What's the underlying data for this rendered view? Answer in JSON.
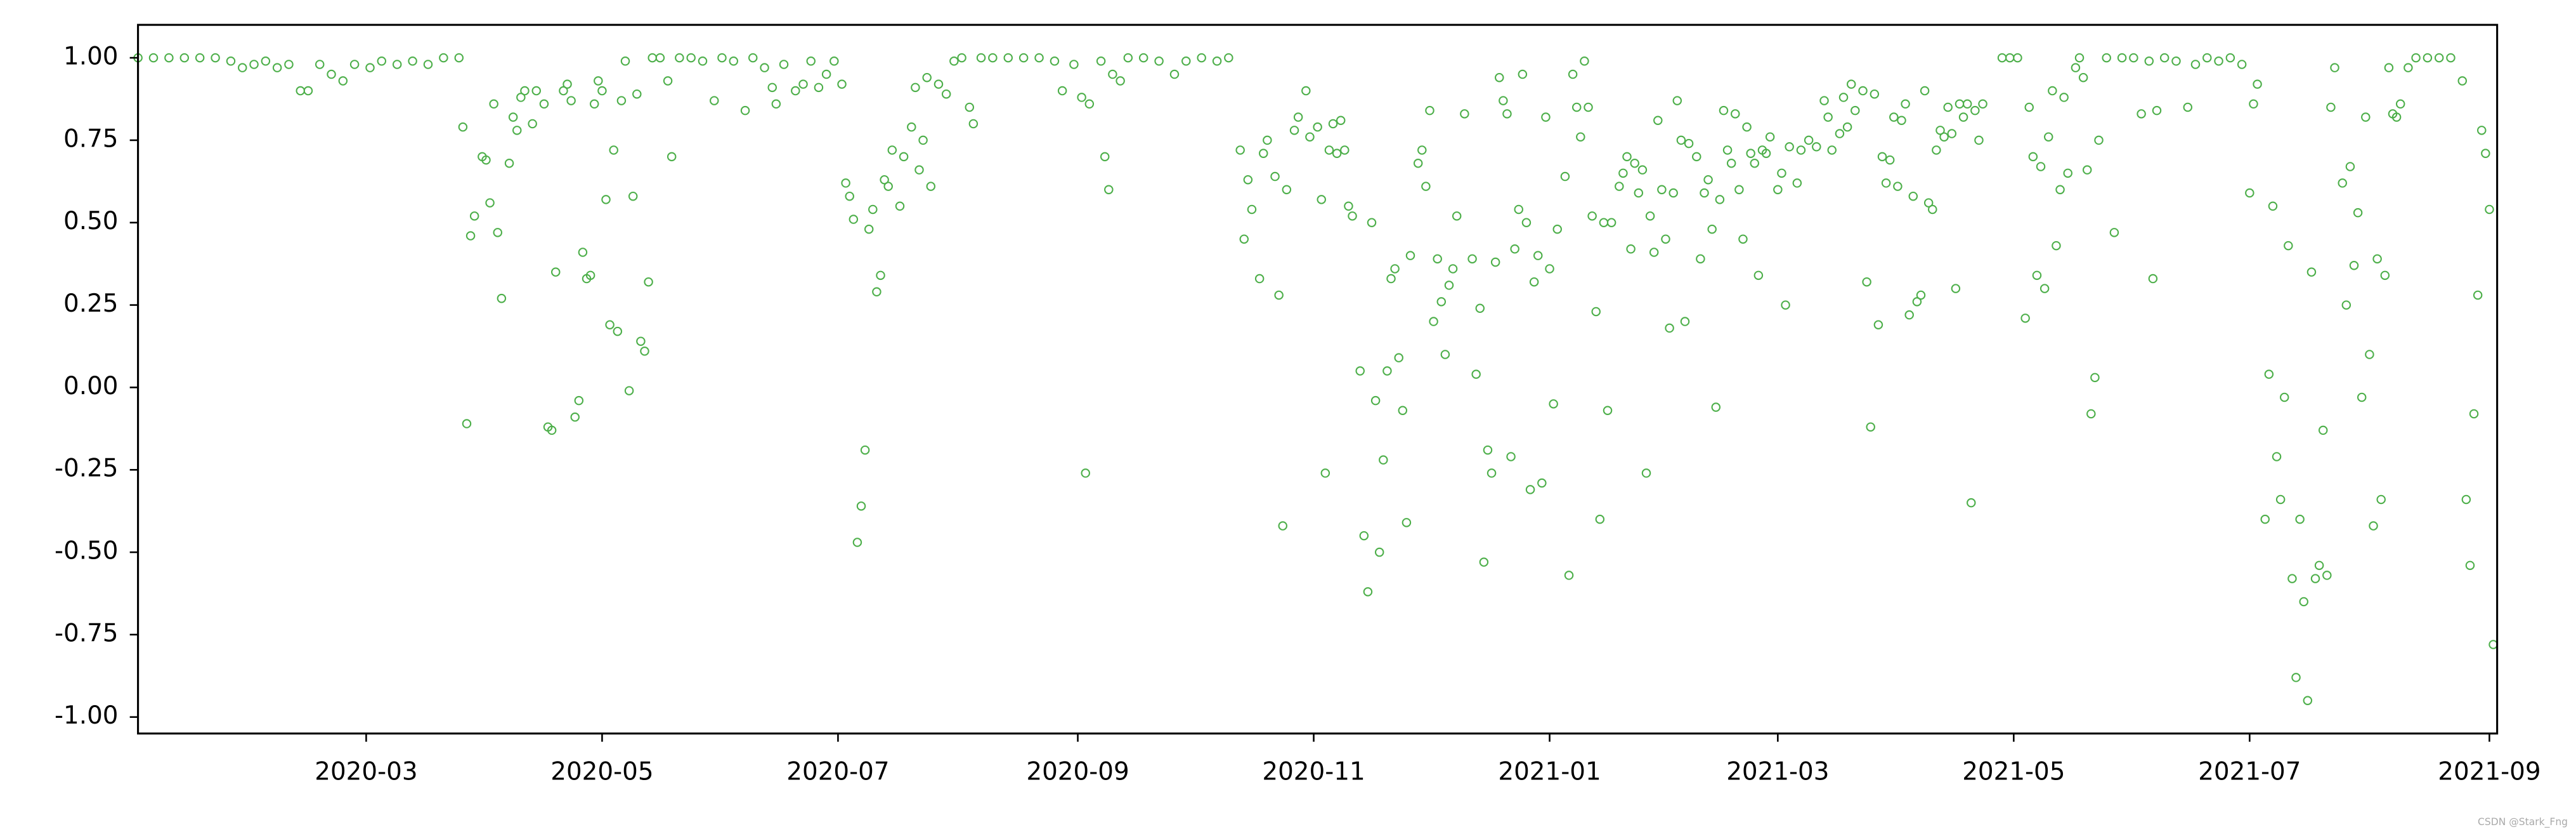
{
  "chart_data": {
    "type": "scatter",
    "color": "#4daf4a",
    "watermark": "CSDN @Stark_Fng",
    "xlim": [
      "2020-01-02",
      "2021-09-03"
    ],
    "xticks": [
      {
        "value": "2020-03-01",
        "label": "2020-03"
      },
      {
        "value": "2020-05-01",
        "label": "2020-05"
      },
      {
        "value": "2020-07-01",
        "label": "2020-07"
      },
      {
        "value": "2020-09-01",
        "label": "2020-09"
      },
      {
        "value": "2020-11-01",
        "label": "2020-11"
      },
      {
        "value": "2021-01-01",
        "label": "2021-01"
      },
      {
        "value": "2021-03-01",
        "label": "2021-03"
      },
      {
        "value": "2021-05-01",
        "label": "2021-05"
      },
      {
        "value": "2021-07-01",
        "label": "2021-07"
      },
      {
        "value": "2021-09-01",
        "label": "2021-09"
      }
    ],
    "ylim": [
      -1.05,
      1.1
    ],
    "yticks": [
      {
        "value": 1,
        "label": "1.00"
      },
      {
        "value": 0.75,
        "label": "0.75"
      },
      {
        "value": 0.5,
        "label": "0.50"
      },
      {
        "value": 0.25,
        "label": "0.25"
      },
      {
        "value": 0,
        "label": "0.00"
      },
      {
        "value": -0.25,
        "label": "-0.25"
      },
      {
        "value": -0.5,
        "label": "-0.50"
      },
      {
        "value": -0.75,
        "label": "-0.75"
      },
      {
        "value": -1,
        "label": "-1.00"
      }
    ],
    "x": [
      "2020-01-02",
      "2020-01-06",
      "2020-01-10",
      "2020-01-14",
      "2020-01-18",
      "2020-01-22",
      "2020-01-26",
      "2020-01-29",
      "2020-02-01",
      "2020-02-04",
      "2020-02-07",
      "2020-02-10",
      "2020-02-13",
      "2020-02-15",
      "2020-02-18",
      "2020-02-21",
      "2020-02-24",
      "2020-02-27",
      "2020-03-02",
      "2020-03-05",
      "2020-03-09",
      "2020-03-13",
      "2020-03-17",
      "2020-03-21",
      "2020-03-25",
      "2020-03-26",
      "2020-03-27",
      "2020-03-28",
      "2020-03-29",
      "2020-03-31",
      "2020-04-01",
      "2020-04-02",
      "2020-04-03",
      "2020-04-04",
      "2020-04-05",
      "2020-04-07",
      "2020-04-08",
      "2020-04-09",
      "2020-04-10",
      "2020-04-11",
      "2020-04-13",
      "2020-04-14",
      "2020-04-16",
      "2020-04-17",
      "2020-04-18",
      "2020-04-19",
      "2020-04-21",
      "2020-04-22",
      "2020-04-23",
      "2020-04-24",
      "2020-04-25",
      "2020-04-26",
      "2020-04-27",
      "2020-04-28",
      "2020-04-29",
      "2020-04-30",
      "2020-05-01",
      "2020-05-02",
      "2020-05-03",
      "2020-05-04",
      "2020-05-05",
      "2020-05-06",
      "2020-05-07",
      "2020-05-08",
      "2020-05-09",
      "2020-05-10",
      "2020-05-11",
      "2020-05-12",
      "2020-05-13",
      "2020-05-14",
      "2020-05-16",
      "2020-05-18",
      "2020-05-19",
      "2020-05-21",
      "2020-05-24",
      "2020-05-27",
      "2020-05-30",
      "2020-06-01",
      "2020-06-04",
      "2020-06-07",
      "2020-06-09",
      "2020-06-12",
      "2020-06-14",
      "2020-06-15",
      "2020-06-17",
      "2020-06-20",
      "2020-06-22",
      "2020-06-24",
      "2020-06-26",
      "2020-06-28",
      "2020-06-30",
      "2020-07-02",
      "2020-07-03",
      "2020-07-04",
      "2020-07-05",
      "2020-07-06",
      "2020-07-07",
      "2020-07-08",
      "2020-07-09",
      "2020-07-10",
      "2020-07-11",
      "2020-07-12",
      "2020-07-13",
      "2020-07-14",
      "2020-07-15",
      "2020-07-17",
      "2020-07-18",
      "2020-07-20",
      "2020-07-21",
      "2020-07-22",
      "2020-07-23",
      "2020-07-24",
      "2020-07-25",
      "2020-07-27",
      "2020-07-29",
      "2020-07-31",
      "2020-08-02",
      "2020-08-04",
      "2020-08-05",
      "2020-08-07",
      "2020-08-10",
      "2020-08-14",
      "2020-08-18",
      "2020-08-22",
      "2020-08-26",
      "2020-08-28",
      "2020-08-31",
      "2020-09-02",
      "2020-09-03",
      "2020-09-04",
      "2020-09-07",
      "2020-09-08",
      "2020-09-09",
      "2020-09-10",
      "2020-09-12",
      "2020-09-14",
      "2020-09-18",
      "2020-09-22",
      "2020-09-26",
      "2020-09-29",
      "2020-10-03",
      "2020-10-07",
      "2020-10-10",
      "2020-10-13",
      "2020-10-14",
      "2020-10-15",
      "2020-10-16",
      "2020-10-18",
      "2020-10-19",
      "2020-10-20",
      "2020-10-22",
      "2020-10-23",
      "2020-10-24",
      "2020-10-25",
      "2020-10-27",
      "2020-10-28",
      "2020-10-30",
      "2020-10-31",
      "2020-11-02",
      "2020-11-03",
      "2020-11-04",
      "2020-11-05",
      "2020-11-06",
      "2020-11-07",
      "2020-11-08",
      "2020-11-09",
      "2020-11-10",
      "2020-11-11",
      "2020-11-13",
      "2020-11-14",
      "2020-11-15",
      "2020-11-16",
      "2020-11-17",
      "2020-11-18",
      "2020-11-19",
      "2020-11-20",
      "2020-11-21",
      "2020-11-22",
      "2020-11-23",
      "2020-11-24",
      "2020-11-25",
      "2020-11-26",
      "2020-11-28",
      "2020-11-29",
      "2020-11-30",
      "2020-12-01",
      "2020-12-02",
      "2020-12-03",
      "2020-12-04",
      "2020-12-05",
      "2020-12-06",
      "2020-12-07",
      "2020-12-08",
      "2020-12-10",
      "2020-12-12",
      "2020-12-13",
      "2020-12-14",
      "2020-12-15",
      "2020-12-16",
      "2020-12-17",
      "2020-12-18",
      "2020-12-19",
      "2020-12-20",
      "2020-12-21",
      "2020-12-22",
      "2020-12-23",
      "2020-12-24",
      "2020-12-25",
      "2020-12-26",
      "2020-12-27",
      "2020-12-28",
      "2020-12-29",
      "2020-12-30",
      "2020-12-31",
      "2021-01-01",
      "2021-01-02",
      "2021-01-03",
      "2021-01-05",
      "2021-01-06",
      "2021-01-07",
      "2021-01-08",
      "2021-01-09",
      "2021-01-10",
      "2021-01-11",
      "2021-01-12",
      "2021-01-13",
      "2021-01-14",
      "2021-01-15",
      "2021-01-16",
      "2021-01-17",
      "2021-01-19",
      "2021-01-20",
      "2021-01-21",
      "2021-01-22",
      "2021-01-23",
      "2021-01-24",
      "2021-01-25",
      "2021-01-26",
      "2021-01-27",
      "2021-01-28",
      "2021-01-29",
      "2021-01-30",
      "2021-01-31",
      "2021-02-01",
      "2021-02-02",
      "2021-02-03",
      "2021-02-04",
      "2021-02-05",
      "2021-02-06",
      "2021-02-08",
      "2021-02-09",
      "2021-02-10",
      "2021-02-11",
      "2021-02-12",
      "2021-02-13",
      "2021-02-14",
      "2021-02-15",
      "2021-02-16",
      "2021-02-17",
      "2021-02-18",
      "2021-02-19",
      "2021-02-20",
      "2021-02-21",
      "2021-02-22",
      "2021-02-23",
      "2021-02-24",
      "2021-02-25",
      "2021-02-26",
      "2021-02-27",
      "2021-03-01",
      "2021-03-02",
      "2021-03-03",
      "2021-03-04",
      "2021-03-06",
      "2021-03-07",
      "2021-03-09",
      "2021-03-11",
      "2021-03-13",
      "2021-03-14",
      "2021-03-15",
      "2021-03-17",
      "2021-03-18",
      "2021-03-19",
      "2021-03-20",
      "2021-03-21",
      "2021-03-23",
      "2021-03-24",
      "2021-03-25",
      "2021-03-26",
      "2021-03-27",
      "2021-03-28",
      "2021-03-29",
      "2021-03-30",
      "2021-03-31",
      "2021-04-01",
      "2021-04-02",
      "2021-04-03",
      "2021-04-04",
      "2021-04-05",
      "2021-04-06",
      "2021-04-07",
      "2021-04-08",
      "2021-04-09",
      "2021-04-10",
      "2021-04-11",
      "2021-04-12",
      "2021-04-13",
      "2021-04-14",
      "2021-04-15",
      "2021-04-16",
      "2021-04-17",
      "2021-04-18",
      "2021-04-19",
      "2021-04-20",
      "2021-04-21",
      "2021-04-22",
      "2021-04-23",
      "2021-04-28",
      "2021-04-30",
      "2021-05-02",
      "2021-05-04",
      "2021-05-05",
      "2021-05-06",
      "2021-05-07",
      "2021-05-08",
      "2021-05-09",
      "2021-05-10",
      "2021-05-11",
      "2021-05-12",
      "2021-05-13",
      "2021-05-14",
      "2021-05-15",
      "2021-05-17",
      "2021-05-18",
      "2021-05-19",
      "2021-05-20",
      "2021-05-21",
      "2021-05-22",
      "2021-05-23",
      "2021-05-25",
      "2021-05-27",
      "2021-05-29",
      "2021-06-01",
      "2021-06-03",
      "2021-06-05",
      "2021-06-06",
      "2021-06-07",
      "2021-06-09",
      "2021-06-12",
      "2021-06-15",
      "2021-06-17",
      "2021-06-20",
      "2021-06-23",
      "2021-06-26",
      "2021-06-29",
      "2021-07-01",
      "2021-07-02",
      "2021-07-03",
      "2021-07-05",
      "2021-07-06",
      "2021-07-07",
      "2021-07-08",
      "2021-07-09",
      "2021-07-10",
      "2021-07-11",
      "2021-07-12",
      "2021-07-13",
      "2021-07-14",
      "2021-07-15",
      "2021-07-16",
      "2021-07-17",
      "2021-07-18",
      "2021-07-19",
      "2021-07-20",
      "2021-07-21",
      "2021-07-22",
      "2021-07-23",
      "2021-07-25",
      "2021-07-26",
      "2021-07-27",
      "2021-07-28",
      "2021-07-29",
      "2021-07-30",
      "2021-07-31",
      "2021-08-01",
      "2021-08-02",
      "2021-08-03",
      "2021-08-04",
      "2021-08-05",
      "2021-08-06",
      "2021-08-07",
      "2021-08-08",
      "2021-08-09",
      "2021-08-11",
      "2021-08-13",
      "2021-08-16",
      "2021-08-19",
      "2021-08-22",
      "2021-08-25",
      "2021-08-26",
      "2021-08-27",
      "2021-08-28",
      "2021-08-29",
      "2021-08-30",
      "2021-08-31",
      "2021-09-01",
      "2021-09-02"
    ],
    "values": [
      1.0,
      1.0,
      1.0,
      1.0,
      1.0,
      1.0,
      0.99,
      0.97,
      0.98,
      0.99,
      0.97,
      0.98,
      0.9,
      0.9,
      0.98,
      0.95,
      0.93,
      0.98,
      0.97,
      0.99,
      0.98,
      0.99,
      0.98,
      1.0,
      1.0,
      0.79,
      -0.11,
      0.46,
      0.52,
      0.7,
      0.69,
      0.56,
      0.86,
      0.47,
      0.27,
      0.68,
      0.82,
      0.78,
      0.88,
      0.9,
      0.8,
      0.9,
      0.86,
      -0.12,
      -0.13,
      0.35,
      0.9,
      0.92,
      0.87,
      -0.09,
      -0.04,
      0.41,
      0.33,
      0.34,
      0.86,
      0.93,
      0.9,
      0.57,
      0.19,
      0.72,
      0.17,
      0.87,
      0.99,
      -0.01,
      0.58,
      0.89,
      0.14,
      0.11,
      0.32,
      1.0,
      1.0,
      0.93,
      0.7,
      1.0,
      1.0,
      0.99,
      0.87,
      1.0,
      0.99,
      0.84,
      1.0,
      0.97,
      0.91,
      0.86,
      0.98,
      0.9,
      0.92,
      0.99,
      0.91,
      0.95,
      0.99,
      0.92,
      0.62,
      0.58,
      0.51,
      -0.47,
      -0.36,
      -0.19,
      0.48,
      0.54,
      0.29,
      0.34,
      0.63,
      0.61,
      0.72,
      0.55,
      0.7,
      0.79,
      0.91,
      0.66,
      0.75,
      0.94,
      0.61,
      0.92,
      0.89,
      0.99,
      1.0,
      0.85,
      0.8,
      1.0,
      1.0,
      1.0,
      1.0,
      1.0,
      0.99,
      0.9,
      0.98,
      0.88,
      -0.26,
      0.86,
      0.99,
      0.7,
      0.6,
      0.95,
      0.93,
      1.0,
      1.0,
      0.99,
      0.95,
      0.99,
      1.0,
      0.99,
      1.0,
      0.72,
      0.45,
      0.63,
      0.54,
      0.33,
      0.71,
      0.75,
      0.64,
      0.28,
      -0.42,
      0.6,
      0.78,
      0.82,
      0.9,
      0.76,
      0.79,
      0.57,
      -0.26,
      0.72,
      0.8,
      0.71,
      0.81,
      0.72,
      0.55,
      0.52,
      0.05,
      -0.45,
      -0.62,
      0.5,
      -0.04,
      -0.5,
      -0.22,
      0.05,
      0.33,
      0.36,
      0.09,
      -0.07,
      -0.41,
      0.4,
      0.68,
      0.72,
      0.61,
      0.84,
      0.2,
      0.39,
      0.26,
      0.1,
      0.31,
      0.36,
      0.52,
      0.83,
      0.39,
      0.04,
      0.24,
      -0.53,
      -0.19,
      -0.26,
      0.38,
      0.94,
      0.87,
      0.83,
      -0.21,
      0.42,
      0.54,
      0.95,
      0.5,
      -0.31,
      0.32,
      0.4,
      -0.29,
      0.82,
      0.36,
      -0.05,
      0.48,
      0.64,
      -0.57,
      0.95,
      0.85,
      0.76,
      0.99,
      0.85,
      0.52,
      0.23,
      -0.4,
      0.5,
      -0.07,
      0.5,
      0.61,
      0.65,
      0.7,
      0.42,
      0.68,
      0.59,
      0.66,
      -0.26,
      0.52,
      0.41,
      0.81,
      0.6,
      0.45,
      0.18,
      0.59,
      0.87,
      0.75,
      0.2,
      0.74,
      0.7,
      0.39,
      0.59,
      0.63,
      0.48,
      -0.06,
      0.57,
      0.84,
      0.72,
      0.68,
      0.83,
      0.6,
      0.45,
      0.79,
      0.71,
      0.68,
      0.34,
      0.72,
      0.71,
      0.76,
      0.6,
      0.65,
      0.25,
      0.73,
      0.62,
      0.72,
      0.75,
      0.73,
      0.87,
      0.82,
      0.72,
      0.77,
      0.88,
      0.79,
      0.92,
      0.84,
      0.9,
      0.32,
      -0.12,
      0.89,
      0.19,
      0.7,
      0.62,
      0.69,
      0.82,
      0.61,
      0.81,
      0.86,
      0.22,
      0.58,
      0.26,
      0.28,
      0.9,
      0.56,
      0.54,
      0.72,
      0.78,
      0.76,
      0.85,
      0.77,
      0.3,
      0.86,
      0.82,
      0.86,
      -0.35,
      0.84,
      0.75,
      0.86,
      1.0,
      1.0,
      1.0,
      0.21,
      0.85,
      0.7,
      0.34,
      0.67,
      0.3,
      0.76,
      0.9,
      0.43,
      0.6,
      0.88,
      0.65,
      0.97,
      1.0,
      0.94,
      0.66,
      -0.08,
      0.03,
      0.75,
      1.0,
      0.47,
      1.0,
      1.0,
      0.83,
      0.99,
      0.33,
      0.84,
      1.0,
      0.99,
      0.85,
      0.98,
      1.0,
      0.99,
      1.0,
      0.98,
      0.59,
      0.86,
      0.92,
      -0.4,
      0.04,
      0.55,
      -0.21,
      -0.34,
      -0.03,
      0.43,
      -0.58,
      -0.88,
      -0.4,
      -0.65,
      -0.95,
      0.35,
      -0.58,
      -0.54,
      -0.13,
      -0.57,
      0.85,
      0.97,
      0.62,
      0.25,
      0.67,
      0.37,
      0.53,
      -0.03,
      0.82,
      0.1,
      -0.42,
      0.39,
      -0.34,
      0.34,
      0.97,
      0.83,
      0.82,
      0.86,
      0.97,
      1.0,
      1.0,
      1.0,
      1.0,
      0.93,
      -0.34,
      -0.54,
      -0.08,
      0.28,
      0.78,
      0.71,
      0.54,
      -0.78
    ]
  }
}
